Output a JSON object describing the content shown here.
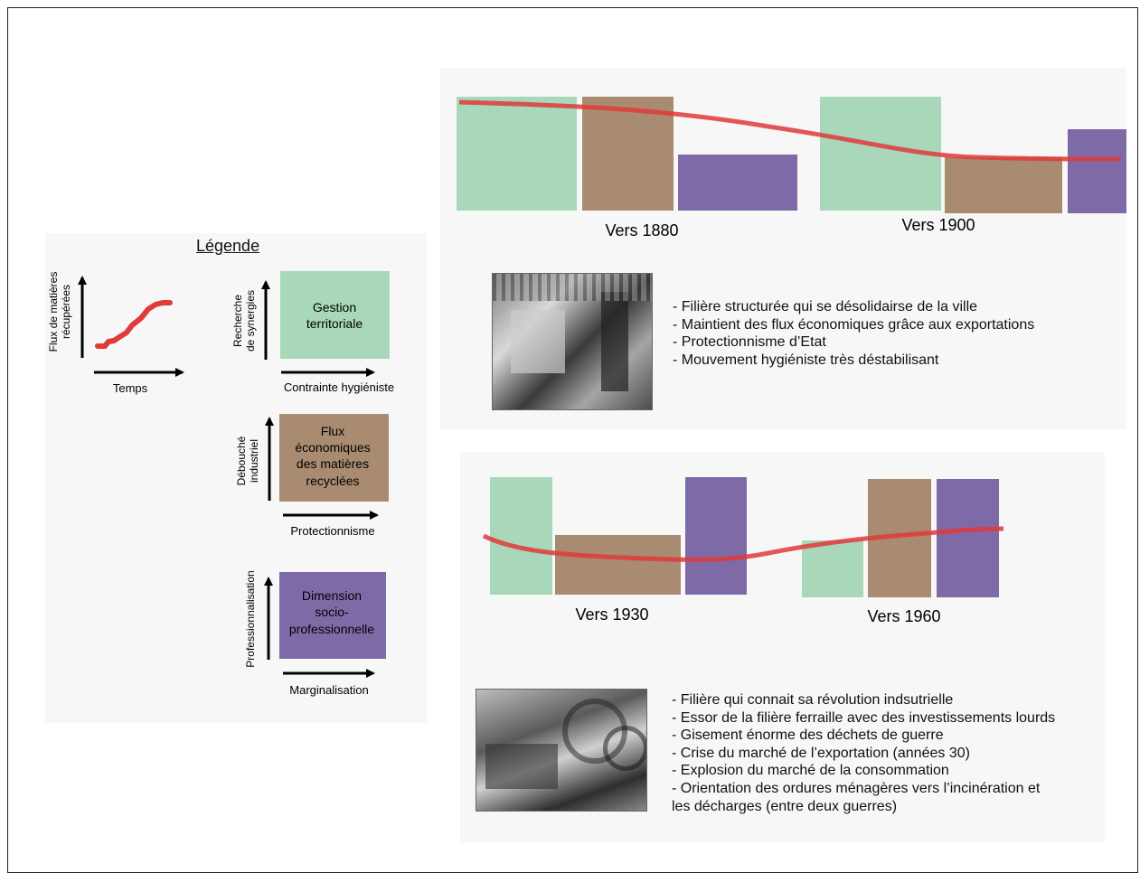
{
  "legend": {
    "title": "Légende",
    "mini_chart": {
      "ylabel_line1": "Flux de matières",
      "ylabel_line2": "récupérées",
      "xlabel": "Temps",
      "line_color": "#e03a3a"
    },
    "items": [
      {
        "box_label": [
          "Gestion",
          "territoriale"
        ],
        "ylabel": [
          "Recherche",
          "de synergies"
        ],
        "xlabel": "Contrainte hygiéniste",
        "color": "#a8d8b9"
      },
      {
        "box_label": [
          "Flux",
          "économiques",
          "des matières",
          "recyclées"
        ],
        "ylabel": [
          "Débouché",
          "industriel"
        ],
        "xlabel": "Protectionnisme",
        "color": "#a88b70"
      },
      {
        "box_label": [
          "Dimension",
          "socio-",
          "professionnelle"
        ],
        "ylabel": [
          "Professionnalisation"
        ],
        "xlabel": "Marginalisation",
        "color": "#7f6aa8"
      }
    ]
  },
  "colors": {
    "green": "#a8d8b9",
    "brown": "#a88b70",
    "purple": "#7f6aa8",
    "trend": "#e03a3a"
  },
  "period_1": {
    "labels": [
      "Vers 1880",
      "Vers 1900"
    ],
    "bullets": [
      "- Filière structurée qui se désolidairse de la ville",
      "- Maintient des flux économiques grâce aux exportations",
      "- Protectionnisme d’Etat",
      "- Mouvement hygiéniste très déstabilisant"
    ]
  },
  "period_2": {
    "labels": [
      "Vers 1930",
      "Vers 1960"
    ],
    "bullets": [
      "- Filière qui connait sa révolution indsutrielle",
      "- Essor de la filière ferraille avec des investissements lourds",
      "- Gisement énorme des déchets de guerre",
      "- Crise du marché de l’exportation (années 30)",
      "- Explosion du marché de la consommation",
      "- Orientation des ordures ménagères vers l’incinération et",
      "les décharges (entre deux guerres)"
    ]
  }
}
